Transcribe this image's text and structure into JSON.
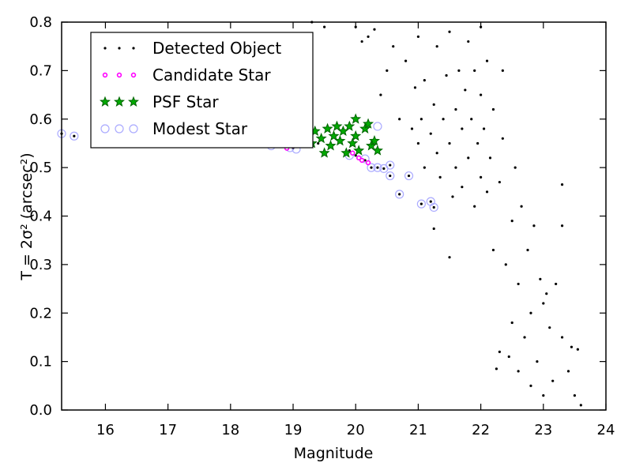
{
  "chart_data": {
    "type": "scatter",
    "title": "",
    "xlabel": "Magnitude",
    "ylabel": "T = 2σ² (arcsec²)",
    "xlim": [
      15.3,
      24
    ],
    "ylim": [
      0.0,
      0.8
    ],
    "xticks": [
      16,
      17,
      18,
      19,
      20,
      21,
      22,
      23,
      24
    ],
    "xtick_labels": [
      "16",
      "17",
      "18",
      "19",
      "20",
      "21",
      "22",
      "23",
      "24"
    ],
    "yticks": [
      0.0,
      0.1,
      0.2,
      0.3,
      0.4,
      0.5,
      0.6,
      0.7,
      0.8
    ],
    "ytick_labels": [
      "0.0",
      "0.1",
      "0.2",
      "0.3",
      "0.4",
      "0.5",
      "0.6",
      "0.7",
      "0.8"
    ],
    "grid": false,
    "legend_position": "top-left",
    "colors": {
      "detected": "#000000",
      "candidate": "#ff00ff",
      "psf_fill": "#00aa00",
      "psf_edge": "#006400",
      "modest": "#aaaaff"
    },
    "series": [
      {
        "name": "Detected Object",
        "marker": "dot",
        "points": [
          [
            15.3,
            0.57
          ],
          [
            15.5,
            0.565
          ],
          [
            15.8,
            0.565
          ],
          [
            16.2,
            0.56
          ],
          [
            16.8,
            0.555
          ],
          [
            17.3,
            0.555
          ],
          [
            17.8,
            0.552
          ],
          [
            18.3,
            0.55
          ],
          [
            18.6,
            0.547
          ],
          [
            18.7,
            0.545
          ],
          [
            18.9,
            0.542
          ],
          [
            19.0,
            0.541
          ],
          [
            19.2,
            0.555
          ],
          [
            19.4,
            0.55
          ],
          [
            19.6,
            0.545
          ],
          [
            19.9,
            0.535
          ],
          [
            20.0,
            0.525
          ],
          [
            20.05,
            0.52
          ],
          [
            20.15,
            0.515
          ],
          [
            20.25,
            0.5
          ],
          [
            20.35,
            0.5
          ],
          [
            20.45,
            0.498
          ],
          [
            20.55,
            0.505
          ],
          [
            20.55,
            0.483
          ],
          [
            20.7,
            0.445
          ],
          [
            20.85,
            0.483
          ],
          [
            21.05,
            0.425
          ],
          [
            21.2,
            0.43
          ],
          [
            21.25,
            0.418
          ],
          [
            21.25,
            0.374
          ],
          [
            21.5,
            0.315
          ],
          [
            19.3,
            0.8
          ],
          [
            19.5,
            0.79
          ],
          [
            20.0,
            0.79
          ],
          [
            20.1,
            0.76
          ],
          [
            20.2,
            0.77
          ],
          [
            20.3,
            0.785
          ],
          [
            20.4,
            0.65
          ],
          [
            20.5,
            0.7
          ],
          [
            20.6,
            0.75
          ],
          [
            20.7,
            0.6
          ],
          [
            20.8,
            0.72
          ],
          [
            20.9,
            0.58
          ],
          [
            20.95,
            0.665
          ],
          [
            21.0,
            0.55
          ],
          [
            21.0,
            0.77
          ],
          [
            21.05,
            0.6
          ],
          [
            21.1,
            0.5
          ],
          [
            21.1,
            0.68
          ],
          [
            21.2,
            0.57
          ],
          [
            21.25,
            0.63
          ],
          [
            21.3,
            0.53
          ],
          [
            21.3,
            0.75
          ],
          [
            21.35,
            0.48
          ],
          [
            21.4,
            0.6
          ],
          [
            21.45,
            0.69
          ],
          [
            21.5,
            0.55
          ],
          [
            21.5,
            0.78
          ],
          [
            21.55,
            0.44
          ],
          [
            21.6,
            0.62
          ],
          [
            21.6,
            0.5
          ],
          [
            21.65,
            0.7
          ],
          [
            21.7,
            0.58
          ],
          [
            21.7,
            0.46
          ],
          [
            21.75,
            0.66
          ],
          [
            21.8,
            0.52
          ],
          [
            21.8,
            0.76
          ],
          [
            21.85,
            0.6
          ],
          [
            21.9,
            0.42
          ],
          [
            21.9,
            0.7
          ],
          [
            21.95,
            0.55
          ],
          [
            22.0,
            0.48
          ],
          [
            22.0,
            0.65
          ],
          [
            22.0,
            0.79
          ],
          [
            22.05,
            0.58
          ],
          [
            22.1,
            0.45
          ],
          [
            22.1,
            0.72
          ],
          [
            22.15,
            0.52
          ],
          [
            22.2,
            0.62
          ],
          [
            22.2,
            0.33
          ],
          [
            22.25,
            0.085
          ],
          [
            22.3,
            0.47
          ],
          [
            22.3,
            0.12
          ],
          [
            22.35,
            0.56
          ],
          [
            22.35,
            0.7
          ],
          [
            22.4,
            0.3
          ],
          [
            22.45,
            0.11
          ],
          [
            22.5,
            0.39
          ],
          [
            22.5,
            0.18
          ],
          [
            22.55,
            0.5
          ],
          [
            22.6,
            0.26
          ],
          [
            22.6,
            0.08
          ],
          [
            22.65,
            0.42
          ],
          [
            22.7,
            0.15
          ],
          [
            22.75,
            0.33
          ],
          [
            22.8,
            0.05
          ],
          [
            22.8,
            0.2
          ],
          [
            22.85,
            0.38
          ],
          [
            22.9,
            0.1
          ],
          [
            22.95,
            0.27
          ],
          [
            23.0,
            0.22
          ],
          [
            23.0,
            0.03
          ],
          [
            23.05,
            0.24
          ],
          [
            23.1,
            0.17
          ],
          [
            23.15,
            0.06
          ],
          [
            23.2,
            0.26
          ],
          [
            23.3,
            0.38
          ],
          [
            23.3,
            0.15
          ],
          [
            23.4,
            0.08
          ],
          [
            23.45,
            0.13
          ],
          [
            23.5,
            0.03
          ],
          [
            23.55,
            0.125
          ],
          [
            23.6,
            0.01
          ],
          [
            23.3,
            0.465
          ]
        ]
      },
      {
        "name": "Candidate Star",
        "marker": "small-circle",
        "points": [
          [
            18.9,
            0.54
          ],
          [
            19.0,
            0.545
          ],
          [
            19.95,
            0.53
          ],
          [
            20.05,
            0.52
          ],
          [
            20.1,
            0.515
          ],
          [
            20.2,
            0.51
          ]
        ]
      },
      {
        "name": "PSF Star",
        "marker": "star",
        "points": [
          [
            19.2,
            0.57
          ],
          [
            19.3,
            0.55
          ],
          [
            19.35,
            0.575
          ],
          [
            19.45,
            0.56
          ],
          [
            19.5,
            0.53
          ],
          [
            19.55,
            0.58
          ],
          [
            19.6,
            0.545
          ],
          [
            19.65,
            0.565
          ],
          [
            19.7,
            0.585
          ],
          [
            19.75,
            0.555
          ],
          [
            19.8,
            0.575
          ],
          [
            19.85,
            0.53
          ],
          [
            19.9,
            0.585
          ],
          [
            19.95,
            0.55
          ],
          [
            20.0,
            0.6
          ],
          [
            20.0,
            0.565
          ],
          [
            20.05,
            0.535
          ],
          [
            20.15,
            0.58
          ],
          [
            20.2,
            0.59
          ],
          [
            20.25,
            0.545
          ],
          [
            20.3,
            0.555
          ],
          [
            20.35,
            0.535
          ]
        ]
      },
      {
        "name": "Modest Star",
        "marker": "open-circle",
        "points": [
          [
            15.3,
            0.57
          ],
          [
            15.5,
            0.565
          ],
          [
            15.95,
            0.577
          ],
          [
            16.2,
            0.56
          ],
          [
            18.65,
            0.545
          ],
          [
            18.95,
            0.541
          ],
          [
            19.05,
            0.538
          ],
          [
            19.9,
            0.525
          ],
          [
            20.15,
            0.518
          ],
          [
            20.25,
            0.5
          ],
          [
            20.35,
            0.5
          ],
          [
            20.45,
            0.498
          ],
          [
            20.55,
            0.505
          ],
          [
            20.55,
            0.483
          ],
          [
            20.7,
            0.445
          ],
          [
            20.85,
            0.483
          ],
          [
            21.05,
            0.425
          ],
          [
            21.2,
            0.43
          ],
          [
            21.25,
            0.418
          ],
          [
            20.35,
            0.585
          ]
        ]
      }
    ]
  }
}
